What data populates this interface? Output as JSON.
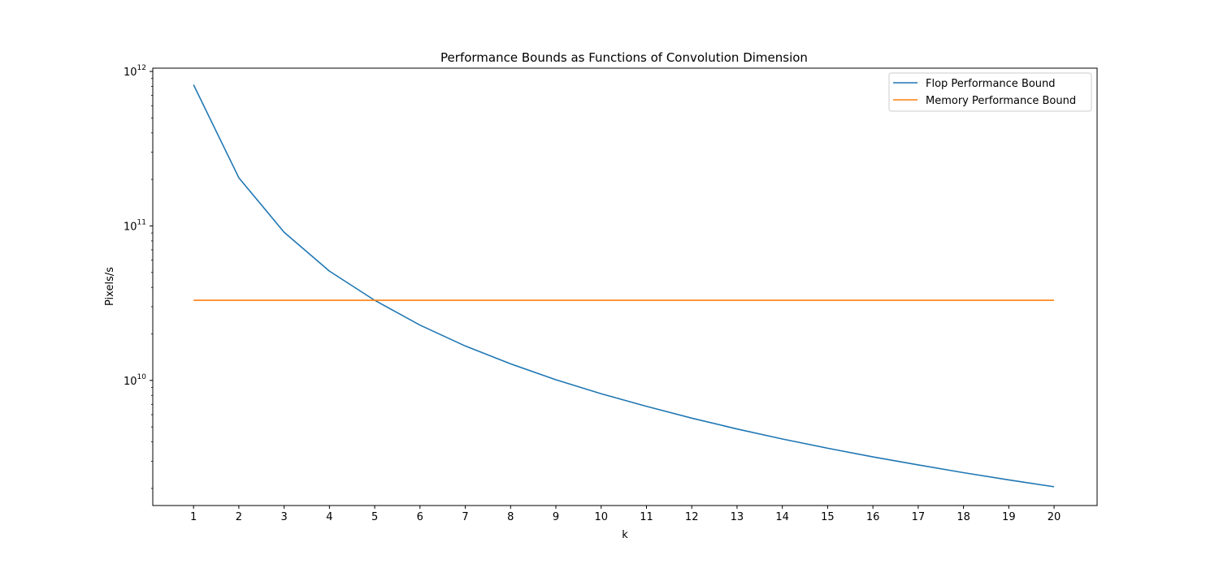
{
  "chart_data": {
    "type": "line",
    "title": "Performance Bounds as Functions of Convolution Dimension",
    "xlabel": "k",
    "ylabel": "Pixels/s",
    "yscale": "log",
    "xlim": [
      0.1,
      20.95
    ],
    "ylim": [
      1550000000.0,
      1050000000000.0
    ],
    "x": [
      1,
      2,
      3,
      4,
      5,
      6,
      7,
      8,
      9,
      10,
      11,
      12,
      13,
      14,
      15,
      16,
      17,
      18,
      19,
      20
    ],
    "x_ticks": [
      "1",
      "2",
      "3",
      "4",
      "5",
      "6",
      "7",
      "8",
      "9",
      "10",
      "11",
      "12",
      "13",
      "14",
      "15",
      "16",
      "17",
      "18",
      "19",
      "20"
    ],
    "y_ticks": [
      {
        "base": "10",
        "exp": "10",
        "value": 10000000000.0
      },
      {
        "base": "10",
        "exp": "11",
        "value": 100000000000.0
      },
      {
        "base": "10",
        "exp": "12",
        "value": 1000000000000.0
      }
    ],
    "series": [
      {
        "name": "Flop Performance Bound",
        "color": "#1f77b4",
        "values": [
          820000000000.0,
          205000000000.0,
          91000000000.0,
          51000000000.0,
          33000000000.0,
          22800000000.0,
          16700000000.0,
          12800000000.0,
          10100000000.0,
          8200000000.0,
          6800000000.0,
          5700000000.0,
          4850000000.0,
          4180000000.0,
          3640000000.0,
          3200000000.0,
          2840000000.0,
          2530000000.0,
          2270000000.0,
          2050000000.0
        ]
      },
      {
        "name": "Memory Performance Bound",
        "color": "#ff7f0e",
        "values": [
          33000000000.0,
          33000000000.0,
          33000000000.0,
          33000000000.0,
          33000000000.0,
          33000000000.0,
          33000000000.0,
          33000000000.0,
          33000000000.0,
          33000000000.0,
          33000000000.0,
          33000000000.0,
          33000000000.0,
          33000000000.0,
          33000000000.0,
          33000000000.0,
          33000000000.0,
          33000000000.0,
          33000000000.0,
          33000000000.0
        ]
      }
    ],
    "legend": "top-right",
    "grid": false
  }
}
